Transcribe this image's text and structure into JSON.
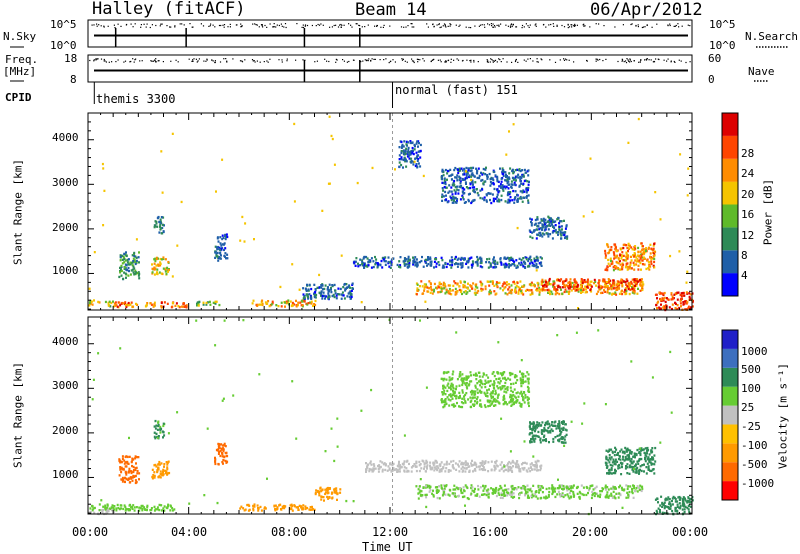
{
  "header": {
    "station": "Halley (fitACF)",
    "beam": "Beam 14",
    "date": "06/Apr/2012"
  },
  "side_labels": {
    "nsky": "N.Sky",
    "nsearch": "N.Search",
    "freq_line1": "Freq.",
    "freq_line2": "[MHz]",
    "nave": "Nave",
    "cpid": "CPID"
  },
  "top_strips": {
    "nsky_ticks": [
      "10^5",
      "10^0"
    ],
    "nsearch_ticks": [
      "10^5",
      "10^0"
    ],
    "freq_ticks": [
      "18",
      "8"
    ],
    "nave_ticks": [
      "60",
      "0"
    ]
  },
  "cpid": {
    "first": "themis 3300",
    "second": "normal (fast) 151"
  },
  "colors": {
    "power_scale": [
      "#0000ff",
      "#1f5fa8",
      "#2e8a57",
      "#5fba2a",
      "#f5c400",
      "#ff8c00",
      "#ff4500",
      "#dd0000"
    ],
    "velocity_scale": [
      "#ff0000",
      "#ff6a00",
      "#ff9a00",
      "#ffc000",
      "#c0c0c0",
      "#66cc33",
      "#2e8b57",
      "#3d6fbf",
      "#2020c8"
    ]
  },
  "chart_data": [
    {
      "type": "heatmap",
      "title": "",
      "xlabel": "",
      "ylabel": "Slant Range [km]",
      "xlim": [
        0,
        24
      ],
      "ylim": [
        180,
        4600
      ],
      "x_ticks": [
        "00:00",
        "04:00",
        "08:00",
        "12:00",
        "16:00",
        "20:00",
        "00:00"
      ],
      "y_ticks": [
        "1000",
        "2000",
        "3000",
        "4000"
      ],
      "colorbar": {
        "label": "Power [dB]",
        "ticks": [
          "4",
          "8",
          "12",
          "16",
          "20",
          "24",
          "28"
        ],
        "range": [
          0,
          30
        ]
      },
      "regions": [
        {
          "t": [
            0.0,
            0.5
          ],
          "r": [
            300,
            420
          ],
          "v": 18
        },
        {
          "t": [
            0.6,
            1.0
          ],
          "r": [
            280,
            400
          ],
          "v": 14
        },
        {
          "t": [
            1.0,
            4.0
          ],
          "r": [
            260,
            380
          ],
          "v": 24
        },
        {
          "t": [
            1.2,
            2.0
          ],
          "r": [
            900,
            1500
          ],
          "v": 10
        },
        {
          "t": [
            2.5,
            3.2
          ],
          "r": [
            1000,
            1400
          ],
          "v": 18
        },
        {
          "t": [
            2.6,
            3.0
          ],
          "r": [
            1900,
            2300
          ],
          "v": 8
        },
        {
          "t": [
            5.0,
            5.5
          ],
          "r": [
            1300,
            1900
          ],
          "v": 6
        },
        {
          "t": [
            4.2,
            5.2
          ],
          "r": [
            300,
            400
          ],
          "v": 14
        },
        {
          "t": [
            6.5,
            9.0
          ],
          "r": [
            280,
            420
          ],
          "v": 20
        },
        {
          "t": [
            8.5,
            10.5
          ],
          "r": [
            450,
            800
          ],
          "v": 6
        },
        {
          "t": [
            10.5,
            18.0
          ],
          "r": [
            1150,
            1400
          ],
          "v": 6
        },
        {
          "t": [
            13.0,
            22.0
          ],
          "r": [
            550,
            850
          ],
          "v": 20
        },
        {
          "t": [
            18.0,
            22.0
          ],
          "r": [
            650,
            900
          ],
          "v": 26
        },
        {
          "t": [
            14.0,
            17.5
          ],
          "r": [
            2600,
            3400
          ],
          "v": 6
        },
        {
          "t": [
            12.3,
            13.2
          ],
          "r": [
            3400,
            4000
          ],
          "v": 6
        },
        {
          "t": [
            17.5,
            19.0
          ],
          "r": [
            1800,
            2300
          ],
          "v": 6
        },
        {
          "t": [
            20.5,
            22.5
          ],
          "r": [
            1100,
            1700
          ],
          "v": 22
        },
        {
          "t": [
            22.5,
            24.0
          ],
          "r": [
            200,
            600
          ],
          "v": 28
        }
      ]
    },
    {
      "type": "heatmap",
      "title": "",
      "xlabel": "Time UT",
      "ylabel": "Slant Range [km]",
      "xlim": [
        0,
        24
      ],
      "ylim": [
        180,
        4600
      ],
      "x_ticks": [
        "00:00",
        "04:00",
        "08:00",
        "12:00",
        "16:00",
        "20:00",
        "00:00"
      ],
      "y_ticks": [
        "1000",
        "2000",
        "3000",
        "4000"
      ],
      "colorbar": {
        "label": "Velocity [m s⁻¹]",
        "ticks": [
          "1000",
          "500",
          "100",
          "25",
          "-25",
          "-100",
          "-500",
          "-1000"
        ],
        "range": [
          -1000,
          1000
        ]
      },
      "regions": [
        {
          "t": [
            0.0,
            3.5
          ],
          "r": [
            280,
            420
          ],
          "v": 60
        },
        {
          "t": [
            0.0,
            1.0
          ],
          "r": [
            200,
            300
          ],
          "v": 10
        },
        {
          "t": [
            1.2,
            2.0
          ],
          "r": [
            900,
            1500
          ],
          "v": -150
        },
        {
          "t": [
            2.5,
            3.2
          ],
          "r": [
            1000,
            1400
          ],
          "v": -80
        },
        {
          "t": [
            2.6,
            3.0
          ],
          "r": [
            1900,
            2300
          ],
          "v": 120
        },
        {
          "t": [
            5.0,
            5.5
          ],
          "r": [
            1300,
            1800
          ],
          "v": -200
        },
        {
          "t": [
            6.0,
            9.0
          ],
          "r": [
            280,
            420
          ],
          "v": -60
        },
        {
          "t": [
            9.0,
            10.0
          ],
          "r": [
            500,
            800
          ],
          "v": -80
        },
        {
          "t": [
            11.0,
            18.0
          ],
          "r": [
            1150,
            1400
          ],
          "v": 5
        },
        {
          "t": [
            13.0,
            22.0
          ],
          "r": [
            550,
            850
          ],
          "v": 30
        },
        {
          "t": [
            14.0,
            17.5
          ],
          "r": [
            2600,
            3400
          ],
          "v": 80
        },
        {
          "t": [
            17.5,
            19.0
          ],
          "r": [
            1800,
            2300
          ],
          "v": 200
        },
        {
          "t": [
            20.5,
            22.5
          ],
          "r": [
            1100,
            1700
          ],
          "v": 400
        },
        {
          "t": [
            22.5,
            24.0
          ],
          "r": [
            200,
            600
          ],
          "v": 150
        }
      ]
    }
  ]
}
